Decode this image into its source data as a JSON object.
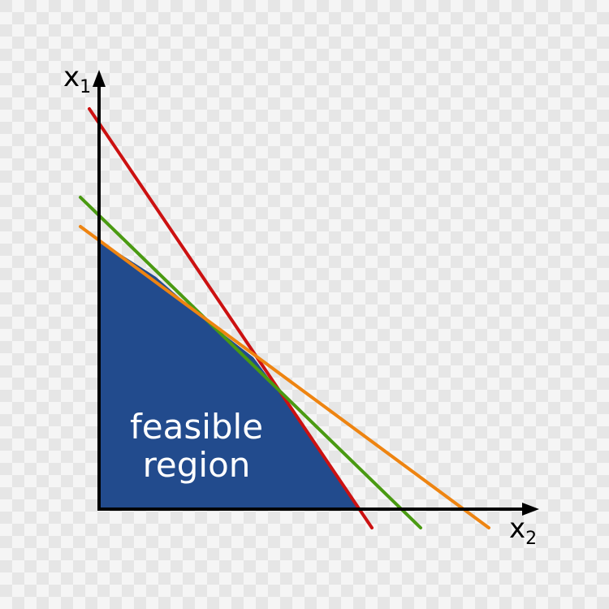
{
  "axes": {
    "vertical_label": "x",
    "vertical_subscript": "1",
    "horizontal_label": "x",
    "horizontal_subscript": "2"
  },
  "region": {
    "label_line1": "feasible",
    "label_line2": "region",
    "fill_color": "#224b8d"
  },
  "constraints": [
    {
      "id": "red",
      "color": "#cc1111"
    },
    {
      "id": "green",
      "color": "#4a9a12"
    },
    {
      "id": "orange",
      "color": "#ee8411"
    }
  ],
  "background": {
    "checker_light": "#f5f5f5",
    "checker_dark": "#e6e6e6"
  }
}
